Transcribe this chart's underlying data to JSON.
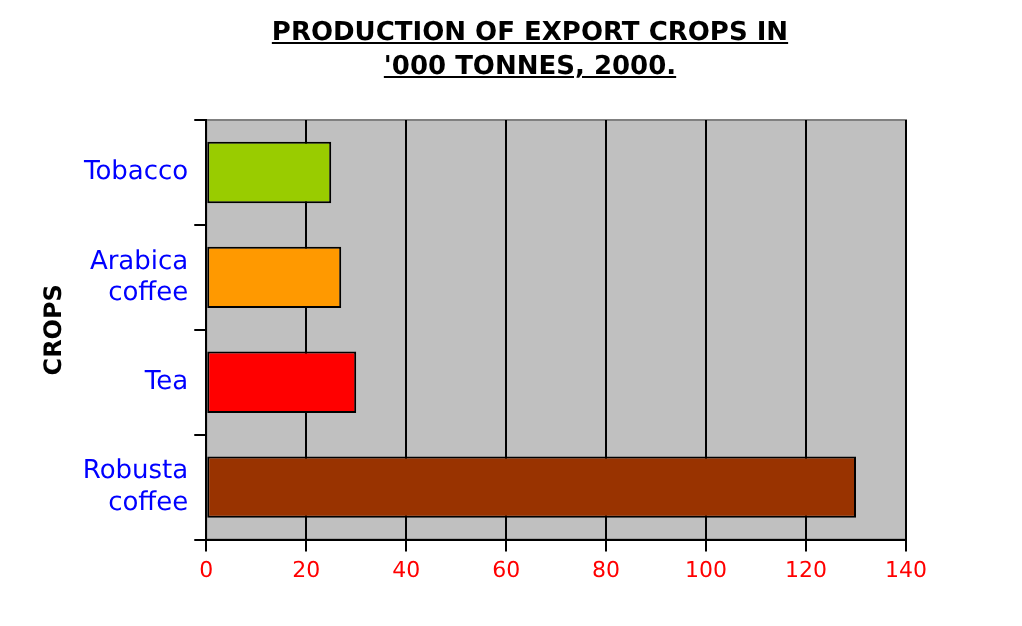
{
  "chart_data": {
    "type": "bar",
    "orientation": "horizontal",
    "title": "PRODUCTION OF EXPORT CROPS IN '000 TONNES, 2000.",
    "ylabel": "CROPS",
    "categories": [
      "Tobacco",
      "Arabica coffee",
      "Tea",
      "Robusta coffee"
    ],
    "values": [
      25,
      27,
      30,
      130
    ],
    "colors": [
      "#99cc00",
      "#ff9900",
      "#ff0000",
      "#993300"
    ],
    "xlim": [
      0,
      140
    ],
    "xticks": [
      0,
      20,
      40,
      60,
      80,
      100,
      120,
      140
    ],
    "grid": "x",
    "legend": false
  }
}
